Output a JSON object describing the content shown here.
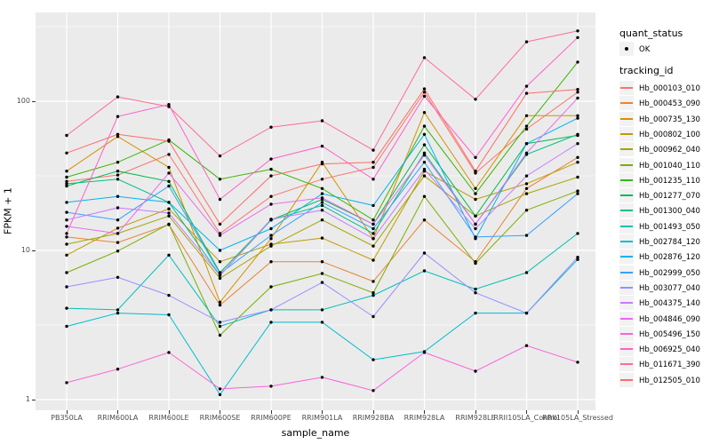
{
  "y_axis": {
    "title": "FPKM + 1",
    "ticks": [
      "100",
      "10",
      "1"
    ]
  },
  "x_axis": {
    "title": "sample_name"
  },
  "legend": {
    "quant_status": {
      "title": "quant_status",
      "items": [
        {
          "label": "OK"
        }
      ]
    },
    "tracking_id": {
      "title": "tracking_id"
    }
  },
  "colors": {
    "panel_bg": "#EBEBEB",
    "grid": "#FFFFFF",
    "marker": "#000000"
  },
  "chart_data": {
    "type": "line",
    "scale": "log10",
    "grid": true,
    "legend_position": "right",
    "xlabel": "sample_name",
    "ylabel": "FPKM + 1",
    "yticks": [
      1,
      10,
      100
    ],
    "ylim": [
      0.85,
      400
    ],
    "x": [
      "PB350LA",
      "RRIM600LA",
      "RRIM600LE",
      "RRIM600SE",
      "RRIM600PE",
      "RRIM901LA",
      "RRIM928BA",
      "RRIM928LA",
      "RRIM928LE",
      "RRII105LA_Control",
      "RRII105LA_Stressed"
    ],
    "series": [
      {
        "name": "Hb_000103_010",
        "color": "#F8766D",
        "values": [
          29,
          32,
          44,
          13,
          23,
          30,
          36,
          115,
          33,
          65,
          115
        ]
      },
      {
        "name": "Hb_000453_090",
        "color": "#EA8331",
        "values": [
          12.3,
          11.3,
          14.9,
          4.3,
          8.4,
          8.4,
          6.2,
          16,
          8.4,
          26,
          42
        ]
      },
      {
        "name": "Hb_000735_130",
        "color": "#D89000",
        "values": [
          34,
          58,
          36,
          4.5,
          12,
          39,
          12,
          84,
          26,
          80,
          80
        ]
      },
      {
        "name": "Hb_000802_100",
        "color": "#C09B00",
        "values": [
          9.3,
          14.1,
          19,
          8.4,
          11,
          12.1,
          8.6,
          34,
          22,
          28,
          39
        ]
      },
      {
        "name": "Hb_000962_040",
        "color": "#A3A500",
        "values": [
          11,
          13,
          17,
          6.5,
          10.7,
          16,
          10.7,
          31.6,
          17,
          24,
          31
        ]
      },
      {
        "name": "Hb_001040_110",
        "color": "#7CAE00",
        "values": [
          7.1,
          9.9,
          15,
          2.7,
          5.7,
          7.0,
          5.2,
          23,
          8.2,
          18.6,
          25
        ]
      },
      {
        "name": "Hb_001235_110",
        "color": "#39B600",
        "values": [
          31,
          39,
          55,
          30,
          35,
          26,
          16,
          68,
          24,
          68,
          183
        ]
      },
      {
        "name": "Hb_001277_070",
        "color": "#00BB4E",
        "values": [
          27,
          34,
          29,
          7.1,
          16,
          22,
          15,
          51,
          17,
          52,
          59
        ]
      },
      {
        "name": "Hb_001300_040",
        "color": "#00C087",
        "values": [
          28,
          30,
          21,
          6.8,
          16,
          20,
          13,
          45,
          15,
          44,
          60
        ]
      },
      {
        "name": "Hb_001493_050",
        "color": "#00C0B5",
        "values": [
          4.1,
          4.0,
          9.3,
          3.1,
          4.0,
          4.0,
          5.0,
          7.3,
          5.5,
          7.1,
          13
        ]
      },
      {
        "name": "Hb_002784_120",
        "color": "#00BDD0",
        "values": [
          3.1,
          3.8,
          3.7,
          1.08,
          3.3,
          3.3,
          1.85,
          2.1,
          3.8,
          3.8,
          8.7
        ]
      },
      {
        "name": "Hb_002876_120",
        "color": "#00B4EF",
        "values": [
          21,
          23,
          21,
          10,
          14,
          24,
          20,
          60,
          12,
          52,
          77
        ]
      },
      {
        "name": "Hb_002999_050",
        "color": "#35A2FF",
        "values": [
          18,
          16,
          27,
          7.0,
          12.6,
          21,
          14,
          39,
          12.3,
          12.6,
          24
        ]
      },
      {
        "name": "Hb_003077_040",
        "color": "#9590FF",
        "values": [
          5.7,
          6.6,
          5.0,
          3.3,
          4.0,
          6.1,
          3.6,
          9.6,
          5.2,
          3.8,
          9.0
        ]
      },
      {
        "name": "Hb_004375_140",
        "color": "#C77CFF",
        "values": [
          16,
          19.3,
          17.8,
          6.8,
          16.2,
          18.6,
          12,
          35,
          14,
          31.6,
          52
        ]
      },
      {
        "name": "Hb_004846_090",
        "color": "#E76BF3",
        "values": [
          14.5,
          13,
          33,
          12.6,
          20.4,
          22.5,
          15,
          43.5,
          15,
          45,
          105
        ]
      },
      {
        "name": "Hb_005496_150",
        "color": "#FA62DB",
        "values": [
          1.3,
          1.6,
          2.07,
          1.18,
          1.23,
          1.41,
          1.15,
          2.07,
          1.55,
          2.3,
          1.78
        ]
      },
      {
        "name": "Hb_006925_040",
        "color": "#FF61C9",
        "values": [
          13,
          79,
          95,
          22,
          41,
          50,
          30,
          108,
          42,
          126,
          267
        ]
      },
      {
        "name": "Hb_011671_390",
        "color": "#FF6A98",
        "values": [
          59,
          107,
          92,
          43,
          67,
          74,
          47,
          196,
          103,
          250,
          296
        ]
      },
      {
        "name": "Hb_012505_010",
        "color": "#FF6C67",
        "values": [
          45,
          60,
          54,
          15,
          31.6,
          38,
          39,
          121,
          34,
          113,
          120
        ]
      }
    ]
  }
}
